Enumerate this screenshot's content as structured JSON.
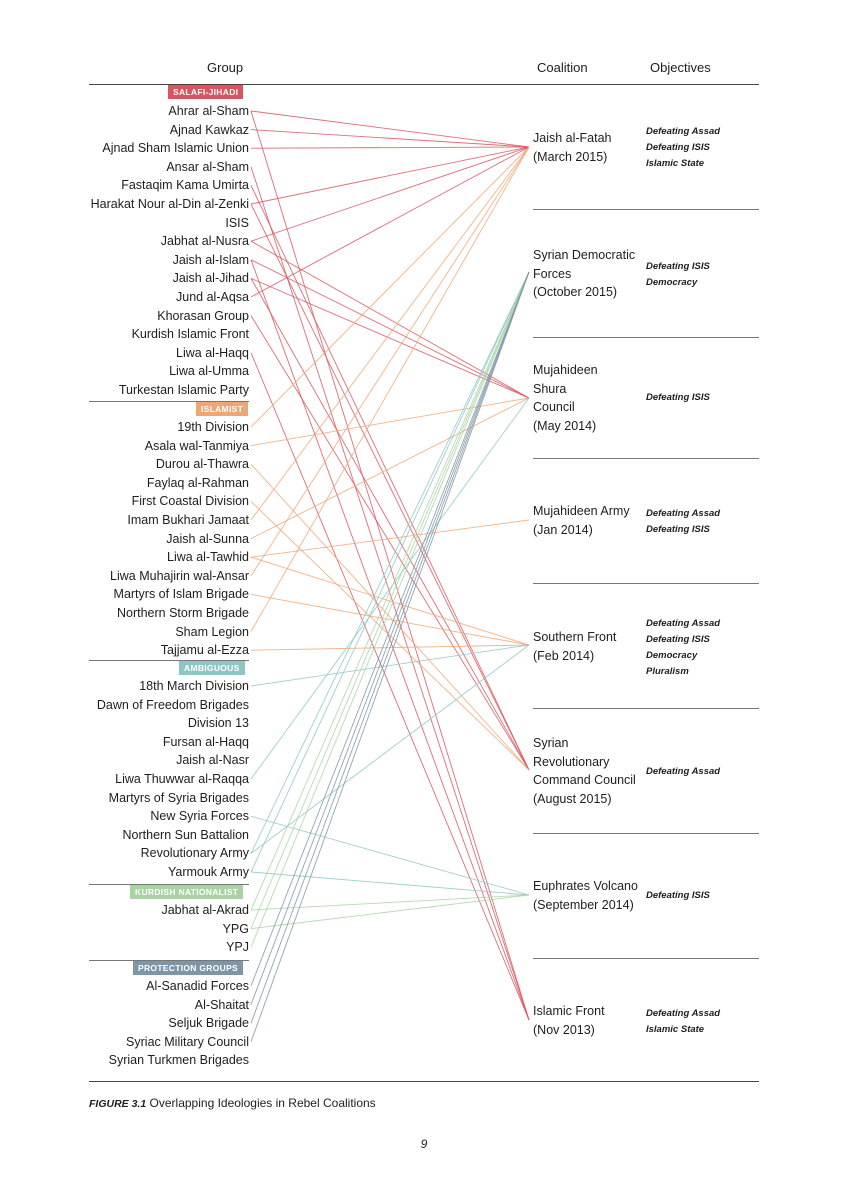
{
  "headers": {
    "group": "Group",
    "coalition": "Coalition",
    "objectives": "Objectives"
  },
  "colors": {
    "salafi_jihadi": "#d9545e",
    "islamist": "#f0a673",
    "ambiguous": "#8ec6c6",
    "kurdish_nationalist": "#a9d3a3",
    "protection_groups": "#7d95a6"
  },
  "categories": [
    {
      "label": "SALAFI-JIHADI",
      "color": "#d9545e"
    },
    {
      "label": "ISLAMIST",
      "color": "#f0a673"
    },
    {
      "label": "AMBIGUOUS",
      "color": "#8ec6c6"
    },
    {
      "label": "KURDISH NATIONALIST",
      "color": "#a9d3a3"
    },
    {
      "label": "PROTECTION GROUPS",
      "color": "#7d95a6"
    }
  ],
  "groups": [
    "Ahrar al-Sham",
    "Ajnad Kawkaz",
    "Ajnad Sham Islamic Union",
    "Ansar al-Sham",
    "Fastaqim Kama Umirta",
    "Harakat Nour al-Din al-Zenki",
    "ISIS",
    "Jabhat al-Nusra",
    "Jaish al-Islam",
    "Jaish al-Jihad",
    "Jund al-Aqsa",
    "Khorasan Group",
    "Kurdish Islamic Front",
    "Liwa al-Haqq",
    "Liwa al-Umma",
    "Turkestan Islamic Party",
    "19th Division",
    "Asala wal-Tanmiya",
    "Durou al-Thawra",
    "Faylaq al-Rahman",
    "First Coastal Division",
    "Imam Bukhari Jamaat",
    "Jaish al-Sunna",
    "Liwa al-Tawhid",
    "Liwa Muhajirin wal-Ansar",
    "Martyrs of Islam Brigade",
    "Northern Storm Brigade",
    "Sham Legion",
    "Tajjamu al-Ezza",
    "18th March Division",
    "Dawn of Freedom Brigades",
    "Division 13",
    "Fursan al-Haqq",
    "Jaish al-Nasr",
    "Liwa Thuwwar al-Raqqa",
    "Martyrs of Syria Brigades",
    "New Syria Forces",
    "Northern Sun Battalion",
    "Revolutionary Army",
    "Yarmouk Army",
    "Jabhat al-Akrad",
    "YPG",
    "YPJ",
    "Al-Sanadid Forces",
    "Al-Shaitat",
    "Seljuk Brigade",
    "Syriac Military Council",
    "Syrian Turkmen Brigades"
  ],
  "coalitions": [
    {
      "lines": [
        "Jaish al-Fatah",
        "(March 2015)"
      ],
      "objectives": [
        "Defeating Assad",
        "Defeating ISIS",
        "Islamic State"
      ]
    },
    {
      "lines": [
        "Syrian Democratic",
        "Forces",
        "(October 2015)"
      ],
      "objectives": [
        "Defeating ISIS",
        "Democracy"
      ]
    },
    {
      "lines": [
        "Mujahideen",
        "Shura",
        "Council",
        "(May 2014)"
      ],
      "objectives": [
        "Defeating ISIS"
      ]
    },
    {
      "lines": [
        "Mujahideen Army",
        "(Jan 2014)"
      ],
      "objectives": [
        "Defeating Assad",
        "Defeating ISIS"
      ]
    },
    {
      "lines": [
        "Southern Front",
        "(Feb 2014)"
      ],
      "objectives": [
        "Defeating Assad",
        "Defeating ISIS",
        "Democracy",
        "Pluralism"
      ]
    },
    {
      "lines": [
        "Syrian",
        "Revolutionary",
        "Command Council",
        "(August 2015)"
      ],
      "objectives": [
        "Defeating Assad"
      ]
    },
    {
      "lines": [
        "Euphrates Volcano",
        "(September 2014)"
      ],
      "objectives": [
        "Defeating ISIS"
      ]
    },
    {
      "lines": [
        "Islamic Front",
        "(Nov 2013)"
      ],
      "objectives": [
        "Defeating Assad",
        "Islamic State"
      ]
    }
  ],
  "links": [
    [
      0,
      0
    ],
    [
      0,
      7
    ],
    [
      1,
      0
    ],
    [
      2,
      0
    ],
    [
      3,
      7
    ],
    [
      4,
      5
    ],
    [
      5,
      0
    ],
    [
      5,
      5
    ],
    [
      7,
      0
    ],
    [
      7,
      2
    ],
    [
      8,
      7
    ],
    [
      8,
      2
    ],
    [
      9,
      2
    ],
    [
      9,
      5
    ],
    [
      10,
      0
    ],
    [
      11,
      5
    ],
    [
      13,
      7
    ],
    [
      16,
      0
    ],
    [
      17,
      2
    ],
    [
      18,
      5
    ],
    [
      20,
      5
    ],
    [
      21,
      0
    ],
    [
      22,
      2
    ],
    [
      23,
      3
    ],
    [
      23,
      4
    ],
    [
      24,
      0
    ],
    [
      25,
      4
    ],
    [
      27,
      0
    ],
    [
      28,
      4
    ],
    [
      29,
      4
    ],
    [
      34,
      2
    ],
    [
      36,
      6
    ],
    [
      38,
      1
    ],
    [
      38,
      4
    ],
    [
      39,
      1
    ],
    [
      39,
      6
    ],
    [
      40,
      1
    ],
    [
      40,
      6
    ],
    [
      41,
      1
    ],
    [
      41,
      6
    ],
    [
      42,
      1
    ],
    [
      43,
      1
    ],
    [
      44,
      1
    ],
    [
      45,
      1
    ],
    [
      46,
      1
    ]
  ],
  "caption": {
    "label": "FIGURE 3.1",
    "text": "Overlapping Ideologies in Rebel Coalitions"
  },
  "page_number": "9"
}
